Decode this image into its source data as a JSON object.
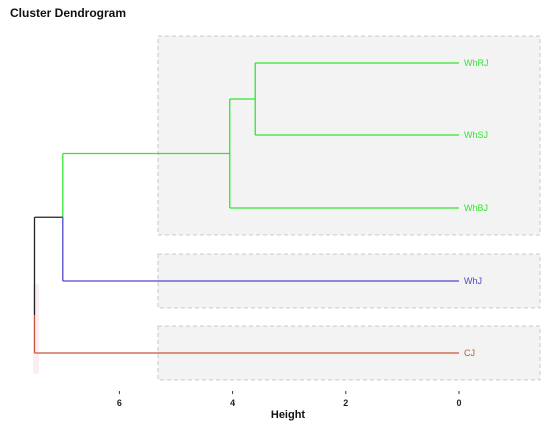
{
  "chart_data": {
    "type": "dendrogram",
    "title": "Cluster Dendrogram",
    "xlabel": "Height",
    "xlim": [
      7.5,
      -1.3
    ],
    "x_ticks": [
      6,
      4,
      2,
      0
    ],
    "leaves": [
      {
        "label": "WhRJ",
        "color": "#33e433",
        "cluster": 0
      },
      {
        "label": "WhSJ",
        "color": "#33e433",
        "cluster": 0
      },
      {
        "label": "WhBJ",
        "color": "#33e433",
        "cluster": 0
      },
      {
        "label": "WhJ",
        "color": "#4f47c8",
        "cluster": 1
      },
      {
        "label": "CJ",
        "color": "#c8553d",
        "cluster": 2
      }
    ],
    "merges": [
      {
        "left": "WhRJ",
        "right": "WhSJ",
        "height": 3.6,
        "color": "#33e433"
      },
      {
        "left": "m1",
        "right": "WhBJ",
        "height": 4.05,
        "color": "#33e433"
      },
      {
        "left": "m2",
        "right": "WhJ",
        "height": 7.0,
        "color": "#4f47c8"
      },
      {
        "left": "m3",
        "right": "CJ",
        "height": 7.5,
        "color": "#222222"
      }
    ],
    "cluster_boxes": [
      {
        "leaves": [
          "WhRJ",
          "WhSJ",
          "WhBJ"
        ]
      },
      {
        "leaves": [
          "WhJ"
        ]
      },
      {
        "leaves": [
          "CJ"
        ]
      }
    ],
    "grid": false
  }
}
